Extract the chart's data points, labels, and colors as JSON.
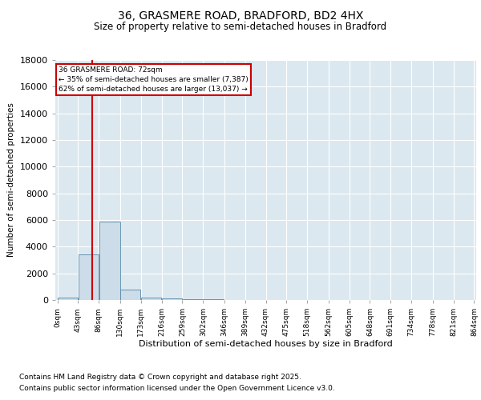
{
  "title_line1": "36, GRASMERE ROAD, BRADFORD, BD2 4HX",
  "title_line2": "Size of property relative to semi-detached houses in Bradford",
  "xlabel": "Distribution of semi-detached houses by size in Bradford",
  "ylabel": "Number of semi-detached properties",
  "property_size": 72,
  "property_label": "36 GRASMERE ROAD: 72sqm",
  "smaller_pct": "35%",
  "smaller_n": "7,387",
  "larger_pct": "62%",
  "larger_n": "13,037",
  "bin_edges": [
    0,
    43,
    86,
    130,
    173,
    216,
    259,
    302,
    346,
    389,
    432,
    475,
    518,
    562,
    605,
    648,
    691,
    734,
    778,
    821,
    864
  ],
  "bar_values": [
    200,
    3400,
    5900,
    800,
    200,
    130,
    90,
    50,
    15,
    8,
    4,
    2,
    1,
    1,
    1,
    0,
    0,
    0,
    0,
    0
  ],
  "bar_color": "#ccdce8",
  "bar_edge_color": "#5588aa",
  "vline_color": "#cc0000",
  "annotation_box_color": "#cc0000",
  "bg_color": "#dce8f0",
  "ylim": [
    0,
    18000
  ],
  "yticks": [
    0,
    2000,
    4000,
    6000,
    8000,
    10000,
    12000,
    14000,
    16000,
    18000
  ],
  "footnote1": "Contains HM Land Registry data © Crown copyright and database right 2025.",
  "footnote2": "Contains public sector information licensed under the Open Government Licence v3.0."
}
